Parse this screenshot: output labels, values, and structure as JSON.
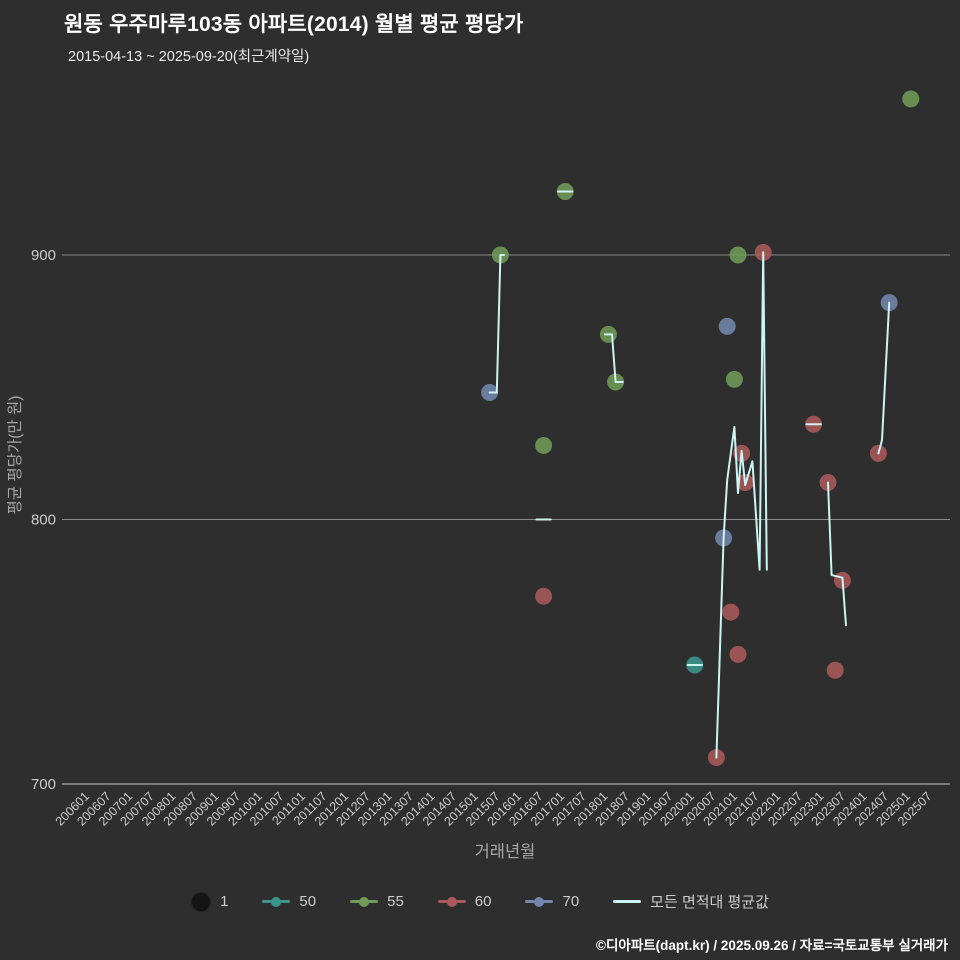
{
  "title": "원동 우주마루103동 아파트(2014) 월별 평균 평당가",
  "subtitle": "2015-04-13 ~ 2025-09-20(최근계약일)",
  "footer": "©디아파트(dapt.kr) / 2025.09.26 / 자료=국토교통부 실거래가",
  "colors": {
    "background": "#2e2e2e",
    "grid": "#8a8a8a",
    "axis": "#c8c8c8",
    "tick_text": "#cccccc",
    "axis_label": "#a8a8a8",
    "size_marker": "#141414"
  },
  "legend": {
    "size_label": "1",
    "avg_label": "모든 면적대 평균값"
  },
  "chart_data": {
    "type": "scatter",
    "title": "원동 우주마루103동 아파트(2014) 월별 평균 평당가",
    "xlabel": "거래년월",
    "ylabel": "평균 평당가(만 원)",
    "ylim": [
      700,
      965
    ],
    "yticks": [
      700,
      800,
      900
    ],
    "grid": true,
    "legend_position": "bottom",
    "xticks": [
      "200601",
      "200607",
      "200701",
      "200707",
      "200801",
      "200807",
      "200901",
      "200907",
      "201001",
      "201007",
      "201101",
      "201107",
      "201201",
      "201207",
      "201301",
      "201307",
      "201401",
      "201407",
      "201501",
      "201507",
      "201601",
      "201607",
      "201701",
      "201707",
      "201801",
      "201807",
      "201901",
      "201907",
      "202001",
      "202007",
      "202101",
      "202107",
      "202201",
      "202207",
      "202301",
      "202307",
      "202401",
      "202407",
      "202501",
      "202507"
    ],
    "series": [
      {
        "name": "50",
        "color": "#3a968c",
        "points": [
          [
            202001,
            745
          ]
        ]
      },
      {
        "name": "55",
        "color": "#6f9b58",
        "points": [
          [
            201507,
            900
          ],
          [
            201607,
            828
          ],
          [
            201701,
            924
          ],
          [
            201801,
            870
          ],
          [
            201803,
            852
          ],
          [
            202012,
            853
          ],
          [
            202101,
            900
          ],
          [
            202501,
            959
          ]
        ]
      },
      {
        "name": "60",
        "color": "#ab5a5a",
        "points": [
          [
            201607,
            771
          ],
          [
            202007,
            710
          ],
          [
            202011,
            765
          ],
          [
            202101,
            749
          ],
          [
            202102,
            825
          ],
          [
            202103,
            814
          ],
          [
            202108,
            901
          ],
          [
            202210,
            836
          ],
          [
            202302,
            814
          ],
          [
            202304,
            743
          ],
          [
            202306,
            777
          ],
          [
            202404,
            825
          ]
        ]
      },
      {
        "name": "70",
        "color": "#7287ab",
        "points": [
          [
            201504,
            848
          ],
          [
            202009,
            793
          ],
          [
            202010,
            873
          ],
          [
            202407,
            882
          ]
        ]
      }
    ],
    "avg_line": {
      "name": "모든 면적대 평균값",
      "color": "#cdf4f4",
      "segments": [
        [
          [
            201504,
            848
          ],
          [
            201506,
            848
          ],
          [
            201507,
            900
          ],
          [
            201508,
            900
          ]
        ],
        [
          [
            201605,
            800
          ],
          [
            201609,
            800
          ]
        ],
        [
          [
            201611,
            924
          ],
          [
            201703,
            924
          ]
        ],
        [
          [
            201712,
            870
          ],
          [
            201802,
            870
          ],
          [
            201803,
            852
          ],
          [
            201805,
            852
          ]
        ],
        [
          [
            201911,
            745
          ],
          [
            202003,
            745
          ]
        ],
        [
          [
            202007,
            710
          ],
          [
            202009,
            793
          ],
          [
            202010,
            815
          ],
          [
            202012,
            835
          ],
          [
            202101,
            810
          ],
          [
            202102,
            826
          ],
          [
            202103,
            813
          ],
          [
            202105,
            822
          ],
          [
            202107,
            781
          ],
          [
            202108,
            901
          ],
          [
            202109,
            781
          ]
        ],
        [
          [
            202208,
            836
          ],
          [
            202212,
            836
          ]
        ],
        [
          [
            202302,
            814
          ],
          [
            202303,
            779
          ],
          [
            202306,
            778
          ],
          [
            202307,
            760
          ]
        ],
        [
          [
            202404,
            825
          ],
          [
            202405,
            830
          ],
          [
            202407,
            882
          ]
        ]
      ]
    }
  }
}
